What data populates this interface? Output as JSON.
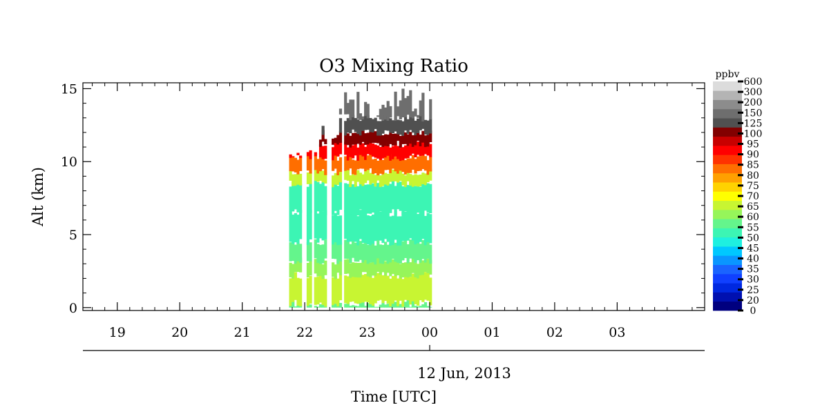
{
  "chart_data": {
    "type": "heatmap",
    "title": "O3 Mixing Ratio",
    "ylabel": "Alt (km)",
    "xlabel": "Time [UTC]",
    "date_label": "12 Jun, 2013",
    "ylim": [
      -0.2,
      15.4
    ],
    "y_ticks": [
      0,
      5,
      10,
      15
    ],
    "x_range_hours": [
      -5.55,
      4.4
    ],
    "x_ticks": [
      {
        "hour": -5,
        "label": "19"
      },
      {
        "hour": -4,
        "label": "20"
      },
      {
        "hour": -3,
        "label": "21"
      },
      {
        "hour": -2,
        "label": "22"
      },
      {
        "hour": -1,
        "label": "23"
      },
      {
        "hour": 0,
        "label": "00"
      },
      {
        "hour": 1,
        "label": "01"
      },
      {
        "hour": 2,
        "label": "02"
      },
      {
        "hour": 3,
        "label": "03"
      }
    ],
    "data_extent_hours": [
      -2.25,
      0.0
    ],
    "data_gaps_hours": [
      [
        -2.05,
        -1.97
      ],
      [
        -1.9,
        -1.85
      ],
      [
        -1.66,
        -1.57
      ],
      [
        -1.42,
        -1.36
      ]
    ],
    "colorbar": {
      "unit_label": "ppbv",
      "levels": [
        "0",
        "20",
        "25",
        "30",
        "35",
        "40",
        "45",
        "50",
        "55",
        "60",
        "65",
        "70",
        "75",
        "80",
        "85",
        "90",
        "95",
        "100",
        "125",
        "150",
        "200",
        "300",
        "600"
      ],
      "colors": [
        "#00007f",
        "#0010b0",
        "#0028e0",
        "#1040ff",
        "#1a64ff",
        "#0a96ff",
        "#00c8ff",
        "#1ef0e0",
        "#3cf5b4",
        "#64f58c",
        "#96f55a",
        "#c8f532",
        "#ffff00",
        "#ffd200",
        "#ffa000",
        "#ff6e00",
        "#ff3200",
        "#ff0000",
        "#c80000",
        "#820000",
        "#505050",
        "#6e6e6e",
        "#8c8c8c",
        "#b4b4b4",
        "#dcdcdc"
      ]
    },
    "profile_bands": [
      {
        "alt_from": 0.0,
        "alt_to": 0.3,
        "ppbv": 63
      },
      {
        "alt_from": 0.3,
        "alt_to": 2.2,
        "ppbv": 72
      },
      {
        "alt_from": 2.2,
        "alt_to": 3.2,
        "ppbv": 66
      },
      {
        "alt_from": 3.2,
        "alt_to": 4.5,
        "ppbv": 61
      },
      {
        "alt_from": 4.5,
        "alt_to": 6.5,
        "ppbv": 56
      },
      {
        "alt_from": 6.5,
        "alt_to": 8.5,
        "ppbv": 59
      },
      {
        "alt_from": 8.5,
        "alt_to": 9.3,
        "ppbv": 72
      },
      {
        "alt_from": 9.3,
        "alt_to": 10.3,
        "ppbv": 92
      },
      {
        "alt_from": 10.3,
        "alt_to": 11.2,
        "ppbv": 110
      },
      {
        "alt_from": 11.2,
        "alt_to": 12.0,
        "ppbv": 160
      },
      {
        "alt_from": 12.0,
        "alt_to": 13.0,
        "ppbv": 250
      },
      {
        "alt_from": 13.0,
        "alt_to": 15.0,
        "ppbv": 400
      }
    ]
  }
}
